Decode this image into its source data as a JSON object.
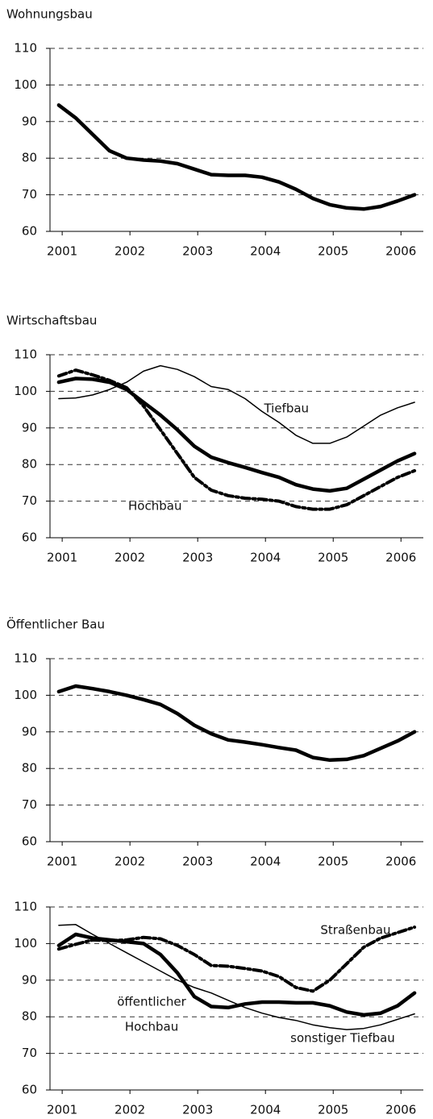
{
  "chart_data": [
    {
      "type": "line",
      "title": "Wohnungsbau",
      "x": [
        2000.95,
        2001.2,
        2001.45,
        2001.7,
        2001.95,
        2002.2,
        2002.45,
        2002.7,
        2002.95,
        2003.2,
        2003.45,
        2003.7,
        2003.95,
        2004.2,
        2004.45,
        2004.7,
        2004.95,
        2005.2,
        2005.45,
        2005.7,
        2005.95,
        2006.2
      ],
      "series": [
        {
          "color": "#000",
          "style": "thick",
          "values": [
            94.5,
            91,
            86.5,
            82,
            80,
            79.5,
            79.2,
            78.5,
            77,
            75.5,
            75.3,
            75.3,
            74.8,
            73.5,
            71.5,
            69,
            67.3,
            66.4,
            66.1,
            66.8,
            68.3,
            70
          ]
        }
      ],
      "xlim": [
        2000.82,
        2006.33
      ],
      "xticks": [
        2001,
        2002,
        2003,
        2004,
        2005,
        2006
      ],
      "ylim": [
        60,
        110
      ],
      "yticks": [
        60,
        70,
        80,
        90,
        100,
        110
      ],
      "grid": true
    },
    {
      "type": "line",
      "title": "Wirtschaftsbau",
      "x": [
        2000.95,
        2001.2,
        2001.45,
        2001.7,
        2001.95,
        2002.2,
        2002.45,
        2002.7,
        2002.95,
        2003.2,
        2003.45,
        2003.7,
        2003.95,
        2004.2,
        2004.45,
        2004.7,
        2004.95,
        2005.2,
        2005.45,
        2005.7,
        2005.95,
        2006.2
      ],
      "series": [
        {
          "name": "Hochbau",
          "color": "#000",
          "style": "thick",
          "values": [
            102.5,
            103.5,
            103.3,
            102.5,
            100.5,
            97,
            93.5,
            89.5,
            85,
            82,
            80.5,
            79.2,
            77.8,
            76.5,
            74.5,
            73.3,
            72.8,
            73.5,
            76,
            78.5,
            81,
            83
          ]
        },
        {
          "color": "#000",
          "style": "dashdot",
          "values": [
            104.2,
            105.8,
            104.5,
            103,
            101,
            96,
            89.5,
            83,
            76.5,
            73,
            71.5,
            70.8,
            70.5,
            70,
            68.5,
            67.8,
            67.8,
            69,
            71.5,
            74,
            76.5,
            78.3
          ]
        },
        {
          "name": "Tiefbau",
          "color": "#000",
          "style": "thin",
          "values": [
            98,
            98.2,
            99,
            100.5,
            102.5,
            105.5,
            107,
            106,
            104,
            101.3,
            100.5,
            98,
            94.5,
            91.5,
            88,
            85.8,
            85.8,
            87.5,
            90.5,
            93.5,
            95.5,
            97
          ]
        }
      ],
      "annotations": [
        {
          "text": "Tiefbau",
          "x": 2004.31,
          "y": 95.2
        },
        {
          "text": "Hochbau",
          "x": 2002.37,
          "y": 68.6
        }
      ],
      "xlim": [
        2000.82,
        2006.33
      ],
      "xticks": [
        2001,
        2002,
        2003,
        2004,
        2005,
        2006
      ],
      "ylim": [
        60,
        110
      ],
      "yticks": [
        60,
        70,
        80,
        90,
        100,
        110
      ],
      "grid": true
    },
    {
      "type": "line",
      "title": "Öffentlicher Bau",
      "x": [
        2000.95,
        2001.2,
        2001.45,
        2001.7,
        2001.95,
        2002.2,
        2002.45,
        2002.7,
        2002.95,
        2003.2,
        2003.45,
        2003.7,
        2003.95,
        2004.2,
        2004.45,
        2004.7,
        2004.95,
        2005.2,
        2005.45,
        2005.7,
        2005.95,
        2006.2
      ],
      "series": [
        {
          "color": "#000",
          "style": "thick",
          "values": [
            101,
            102.5,
            101.8,
            101,
            100,
            98.8,
            97.5,
            95,
            91.8,
            89.5,
            87.8,
            87.2,
            86.5,
            85.7,
            85,
            83,
            82.3,
            82.5,
            83.5,
            85.5,
            87.5,
            90
          ]
        }
      ],
      "xlim": [
        2000.82,
        2006.33
      ],
      "xticks": [
        2001,
        2002,
        2003,
        2004,
        2005,
        2006
      ],
      "ylim": [
        60,
        110
      ],
      "yticks": [
        60,
        70,
        80,
        90,
        100,
        110
      ],
      "grid": true
    },
    {
      "type": "line",
      "x": [
        2000.95,
        2001.2,
        2001.45,
        2001.7,
        2001.95,
        2002.2,
        2002.45,
        2002.7,
        2002.95,
        2003.2,
        2003.45,
        2003.7,
        2003.95,
        2004.2,
        2004.45,
        2004.7,
        2004.95,
        2005.2,
        2005.45,
        2005.7,
        2005.95,
        2006.2
      ],
      "series": [
        {
          "name": "Straßenbau",
          "color": "#000",
          "style": "dashdot",
          "values": [
            98.5,
            99.8,
            101,
            100.8,
            101,
            101.7,
            101.3,
            99.5,
            97,
            94,
            93.8,
            93.2,
            92.5,
            91,
            88,
            87,
            90,
            94.5,
            99,
            101.5,
            103,
            104.5
          ]
        },
        {
          "color": "#000",
          "style": "thick",
          "values": [
            99.5,
            102.5,
            101.5,
            101,
            100.5,
            100,
            97,
            92,
            85.5,
            82.8,
            82.5,
            83.5,
            84,
            84,
            83.8,
            83.8,
            83,
            81.3,
            80.5,
            81,
            83,
            86.5
          ]
        },
        {
          "name": "sonstiger Tiefbau",
          "color": "#000",
          "style": "thin",
          "values": [
            105,
            105.2,
            102.5,
            100,
            97.5,
            95,
            92.5,
            90,
            88,
            86.5,
            84.5,
            82.5,
            81,
            79.8,
            79,
            77.8,
            77,
            76.5,
            76.8,
            77.8,
            79.3,
            80.8
          ]
        }
      ],
      "annotations": [
        {
          "text": "Straßenbau",
          "x": 2005.33,
          "y": 103.6
        },
        {
          "text": "öffentlicher",
          "x": 2002.32,
          "y": 84
        },
        {
          "text": "Hochbau",
          "x": 2002.32,
          "y": 77.2
        },
        {
          "text": "sonstiger Tiefbau",
          "x": 2005.14,
          "y": 74.1
        }
      ],
      "xlim": [
        2000.82,
        2006.33
      ],
      "xticks": [
        2001,
        2002,
        2003,
        2004,
        2005,
        2006
      ],
      "ylim": [
        60,
        110
      ],
      "yticks": [
        60,
        70,
        80,
        90,
        100,
        110
      ],
      "grid": true
    }
  ]
}
